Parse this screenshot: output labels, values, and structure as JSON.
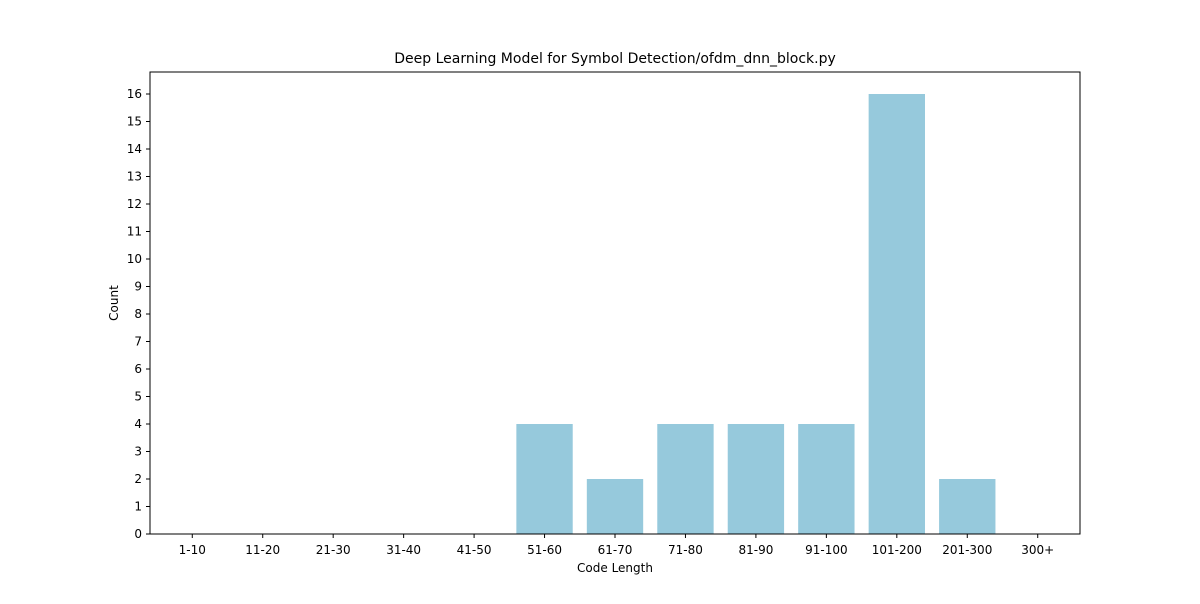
{
  "chart_data": {
    "type": "bar",
    "title": "Deep Learning Model for Symbol Detection/ofdm_dnn_block.py",
    "xlabel": "Code Length",
    "ylabel": "Count",
    "categories": [
      "1-10",
      "11-20",
      "21-30",
      "31-40",
      "41-50",
      "51-60",
      "61-70",
      "71-80",
      "81-90",
      "91-100",
      "101-200",
      "201-300",
      "300+"
    ],
    "values": [
      0,
      0,
      0,
      0,
      0,
      4,
      2,
      4,
      4,
      4,
      16,
      2,
      0
    ],
    "ylim": [
      0,
      16.8
    ],
    "yticks": [
      0,
      1,
      2,
      3,
      4,
      5,
      6,
      7,
      8,
      9,
      10,
      11,
      12,
      13,
      14,
      15,
      16
    ],
    "grid": false,
    "colors": {
      "bar": "#96c9dc",
      "axis": "#000000"
    }
  }
}
